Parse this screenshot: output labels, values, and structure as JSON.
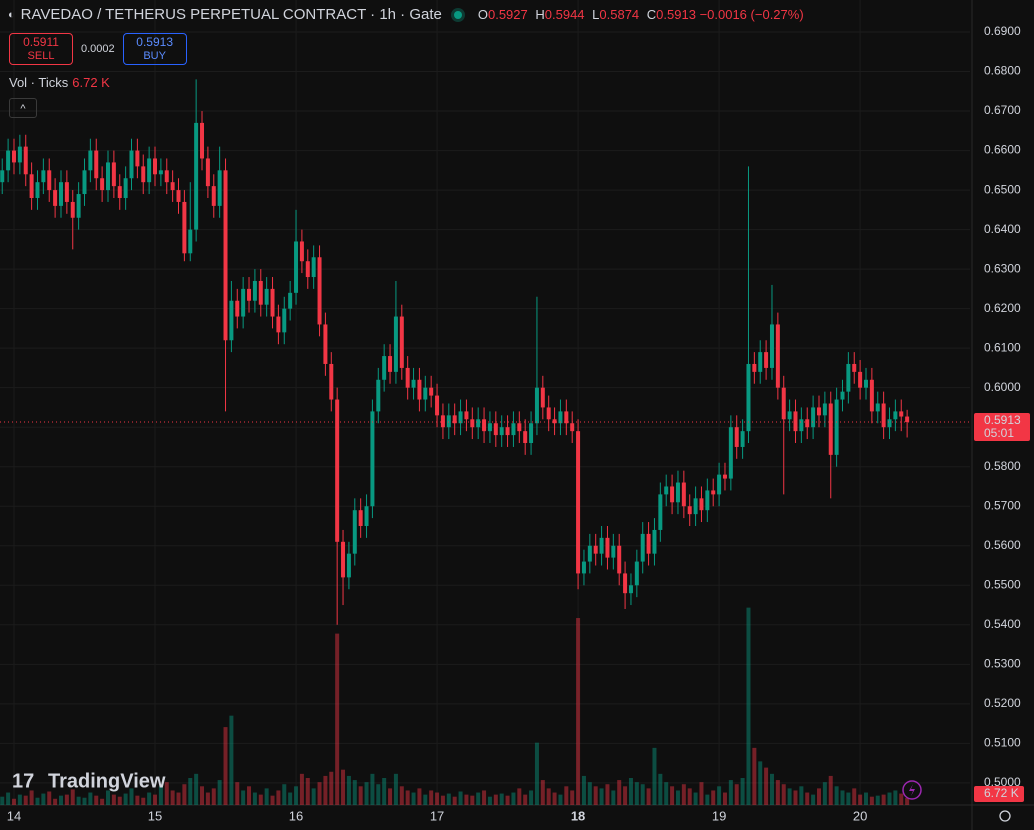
{
  "chart_data": {
    "type": "candlestick",
    "title": "RAVEDAO / TETHERUS PERPETUAL CONTRACT · 1h · Gate",
    "ohlc_labels": [
      "O",
      "H",
      "L",
      "C"
    ],
    "change": {
      "value": -0.0016,
      "label": "−0.0016"
    },
    "change_pct": {
      "value": -0.27,
      "label": "(−0.27%)"
    },
    "sell": {
      "price": 0.5911,
      "label": "SELL"
    },
    "spread": 0.0002,
    "buy": {
      "price": 0.5913,
      "label": "BUY"
    },
    "countdown": "05:01",
    "branding": "TradingView",
    "up_color": "#089981",
    "down_color": "#f23645",
    "open": [
      0.652,
      0.655,
      0.66,
      0.657,
      0.661,
      0.654,
      0.648,
      0.652,
      0.655,
      0.65,
      0.646,
      0.652,
      0.647,
      0.643,
      0.649,
      0.655,
      0.66,
      0.653,
      0.65,
      0.657,
      0.651,
      0.648,
      0.653,
      0.66,
      0.656,
      0.652,
      0.658,
      0.654,
      0.655,
      0.652,
      0.65,
      0.647,
      0.634,
      0.64,
      0.667,
      0.658,
      0.651,
      0.646,
      0.655,
      0.612,
      0.622,
      0.618,
      0.625,
      0.622,
      0.627,
      0.621,
      0.625,
      0.618,
      0.614,
      0.62,
      0.624,
      0.637,
      0.632,
      0.628,
      0.633,
      0.616,
      0.606,
      0.597,
      0.561,
      0.552,
      0.558,
      0.569,
      0.565,
      0.57,
      0.594,
      0.602,
      0.608,
      0.604,
      0.618,
      0.605,
      0.6,
      0.602,
      0.597,
      0.6,
      0.598,
      0.593,
      0.59,
      0.593,
      0.591,
      0.594,
      0.592,
      0.59,
      0.592,
      0.589,
      0.591,
      0.588,
      0.59,
      0.588,
      0.591,
      0.589,
      0.586,
      0.591,
      0.6,
      0.595,
      0.592,
      0.591,
      0.594,
      0.591,
      0.589,
      0.553,
      0.556,
      0.56,
      0.558,
      0.562,
      0.557,
      0.56,
      0.553,
      0.548,
      0.55,
      0.556,
      0.563,
      0.558,
      0.564,
      0.573,
      0.575,
      0.571,
      0.576,
      0.57,
      0.568,
      0.572,
      0.569,
      0.574,
      0.573,
      0.578,
      0.577,
      0.59,
      0.585,
      0.589,
      0.606,
      0.604,
      0.609,
      0.605,
      0.616,
      0.6,
      0.592,
      0.594,
      0.589,
      0.592,
      0.59,
      0.595,
      0.593,
      0.596,
      0.583,
      0.597,
      0.599,
      0.606,
      0.604,
      0.6,
      0.602,
      0.594,
      0.596,
      0.59,
      0.592,
      0.594,
      0.5927
    ],
    "high": [
      0.658,
      0.663,
      0.663,
      0.664,
      0.664,
      0.657,
      0.655,
      0.658,
      0.658,
      0.653,
      0.655,
      0.655,
      0.65,
      0.652,
      0.658,
      0.663,
      0.663,
      0.656,
      0.66,
      0.66,
      0.654,
      0.656,
      0.663,
      0.663,
      0.659,
      0.661,
      0.661,
      0.658,
      0.658,
      0.655,
      0.653,
      0.65,
      0.652,
      0.678,
      0.67,
      0.661,
      0.654,
      0.661,
      0.658,
      0.627,
      0.625,
      0.628,
      0.628,
      0.63,
      0.63,
      0.628,
      0.628,
      0.621,
      0.623,
      0.627,
      0.645,
      0.64,
      0.635,
      0.636,
      0.636,
      0.619,
      0.609,
      0.6,
      0.564,
      0.561,
      0.572,
      0.572,
      0.573,
      0.597,
      0.605,
      0.611,
      0.611,
      0.627,
      0.621,
      0.608,
      0.605,
      0.605,
      0.603,
      0.603,
      0.601,
      0.596,
      0.596,
      0.596,
      0.597,
      0.597,
      0.595,
      0.595,
      0.595,
      0.594,
      0.594,
      0.593,
      0.593,
      0.594,
      0.594,
      0.592,
      0.594,
      0.623,
      0.603,
      0.598,
      0.595,
      0.597,
      0.597,
      0.594,
      0.592,
      0.559,
      0.563,
      0.563,
      0.565,
      0.565,
      0.563,
      0.563,
      0.556,
      0.553,
      0.559,
      0.566,
      0.566,
      0.567,
      0.576,
      0.578,
      0.578,
      0.579,
      0.579,
      0.573,
      0.575,
      0.575,
      0.577,
      0.577,
      0.581,
      0.581,
      0.593,
      0.593,
      0.592,
      0.656,
      0.609,
      0.612,
      0.612,
      0.626,
      0.619,
      0.603,
      0.597,
      0.597,
      0.595,
      0.595,
      0.598,
      0.598,
      0.599,
      0.599,
      0.6,
      0.602,
      0.609,
      0.609,
      0.607,
      0.605,
      0.605,
      0.599,
      0.599,
      0.595,
      0.597,
      0.597,
      0.5944
    ],
    "low": [
      0.649,
      0.652,
      0.654,
      0.654,
      0.651,
      0.645,
      0.645,
      0.649,
      0.647,
      0.643,
      0.643,
      0.644,
      0.635,
      0.64,
      0.646,
      0.652,
      0.65,
      0.647,
      0.647,
      0.648,
      0.645,
      0.645,
      0.65,
      0.653,
      0.649,
      0.649,
      0.651,
      0.651,
      0.649,
      0.647,
      0.644,
      0.632,
      0.632,
      0.637,
      0.655,
      0.648,
      0.643,
      0.643,
      0.594,
      0.609,
      0.615,
      0.615,
      0.619,
      0.619,
      0.618,
      0.618,
      0.615,
      0.611,
      0.611,
      0.617,
      0.621,
      0.629,
      0.625,
      0.625,
      0.613,
      0.603,
      0.594,
      0.54,
      0.545,
      0.549,
      0.555,
      0.562,
      0.562,
      0.567,
      0.591,
      0.599,
      0.601,
      0.601,
      0.602,
      0.597,
      0.597,
      0.594,
      0.594,
      0.595,
      0.59,
      0.587,
      0.587,
      0.588,
      0.588,
      0.589,
      0.587,
      0.587,
      0.586,
      0.586,
      0.585,
      0.585,
      0.585,
      0.585,
      0.586,
      0.583,
      0.583,
      0.588,
      0.592,
      0.589,
      0.588,
      0.588,
      0.588,
      0.586,
      0.549,
      0.55,
      0.553,
      0.555,
      0.555,
      0.554,
      0.554,
      0.55,
      0.544,
      0.545,
      0.547,
      0.553,
      0.555,
      0.555,
      0.561,
      0.57,
      0.568,
      0.568,
      0.567,
      0.565,
      0.565,
      0.566,
      0.566,
      0.57,
      0.57,
      0.574,
      0.574,
      0.582,
      0.582,
      0.586,
      0.601,
      0.601,
      0.602,
      0.602,
      0.597,
      0.573,
      0.589,
      0.586,
      0.586,
      0.587,
      0.587,
      0.59,
      0.59,
      0.572,
      0.58,
      0.594,
      0.596,
      0.601,
      0.597,
      0.597,
      0.591,
      0.591,
      0.587,
      0.587,
      0.589,
      0.589,
      0.5874
    ],
    "close": [
      0.655,
      0.66,
      0.657,
      0.661,
      0.654,
      0.648,
      0.652,
      0.655,
      0.65,
      0.646,
      0.652,
      0.647,
      0.643,
      0.649,
      0.655,
      0.66,
      0.653,
      0.65,
      0.657,
      0.651,
      0.648,
      0.653,
      0.66,
      0.656,
      0.652,
      0.658,
      0.654,
      0.655,
      0.652,
      0.65,
      0.647,
      0.634,
      0.64,
      0.667,
      0.658,
      0.651,
      0.646,
      0.655,
      0.612,
      0.622,
      0.618,
      0.625,
      0.622,
      0.627,
      0.621,
      0.625,
      0.618,
      0.614,
      0.62,
      0.624,
      0.637,
      0.632,
      0.628,
      0.633,
      0.616,
      0.606,
      0.597,
      0.561,
      0.552,
      0.558,
      0.569,
      0.565,
      0.57,
      0.594,
      0.602,
      0.608,
      0.604,
      0.618,
      0.605,
      0.6,
      0.602,
      0.597,
      0.6,
      0.598,
      0.593,
      0.59,
      0.593,
      0.591,
      0.594,
      0.592,
      0.59,
      0.592,
      0.589,
      0.591,
      0.588,
      0.59,
      0.588,
      0.591,
      0.589,
      0.586,
      0.591,
      0.6,
      0.595,
      0.592,
      0.591,
      0.594,
      0.591,
      0.589,
      0.553,
      0.556,
      0.56,
      0.558,
      0.562,
      0.557,
      0.56,
      0.553,
      0.548,
      0.55,
      0.556,
      0.563,
      0.558,
      0.564,
      0.573,
      0.575,
      0.571,
      0.576,
      0.57,
      0.568,
      0.572,
      0.569,
      0.574,
      0.573,
      0.578,
      0.577,
      0.59,
      0.585,
      0.589,
      0.606,
      0.604,
      0.609,
      0.605,
      0.616,
      0.6,
      0.592,
      0.594,
      0.589,
      0.592,
      0.59,
      0.595,
      0.593,
      0.596,
      0.583,
      0.597,
      0.599,
      0.606,
      0.604,
      0.6,
      0.602,
      0.594,
      0.596,
      0.59,
      0.592,
      0.594,
      0.5927,
      0.5913
    ],
    "volume": {
      "name": "Vol · Ticks",
      "value_label": "6.72 K",
      "ylim": [
        0,
        775
      ],
      "values": [
        8,
        12,
        6,
        10,
        9,
        14,
        7,
        11,
        13,
        6,
        9,
        10,
        15,
        8,
        7,
        12,
        9,
        6,
        14,
        10,
        8,
        11,
        16,
        9,
        7,
        12,
        10,
        18,
        22,
        14,
        12,
        20,
        26,
        30,
        18,
        12,
        16,
        24,
        75,
        86,
        22,
        14,
        18,
        12,
        10,
        16,
        9,
        14,
        20,
        12,
        18,
        30,
        26,
        16,
        22,
        28,
        32,
        165,
        34,
        28,
        24,
        18,
        22,
        30,
        20,
        26,
        16,
        30,
        18,
        14,
        12,
        16,
        10,
        14,
        12,
        9,
        11,
        8,
        13,
        10,
        9,
        12,
        14,
        8,
        10,
        11,
        9,
        12,
        16,
        10,
        14,
        60,
        24,
        16,
        12,
        10,
        18,
        14,
        180,
        28,
        22,
        18,
        16,
        20,
        14,
        24,
        18,
        26,
        22,
        20,
        16,
        55,
        30,
        22,
        18,
        14,
        20,
        16,
        12,
        22,
        10,
        14,
        18,
        12,
        24,
        20,
        26,
        190,
        55,
        42,
        36,
        30,
        24,
        20,
        16,
        14,
        18,
        12,
        10,
        16,
        22,
        28,
        18,
        14,
        12,
        16,
        10,
        12,
        8,
        9,
        10,
        12,
        14,
        11,
        6.72
      ]
    },
    "xlim": [
      -0.38,
      164.7
    ],
    "xticks": [
      {
        "value": 2,
        "label": "14"
      },
      {
        "value": 26,
        "label": "15"
      },
      {
        "value": 50,
        "label": "16"
      },
      {
        "value": 74,
        "label": "17"
      },
      {
        "value": 98,
        "label": "18"
      },
      {
        "value": 122,
        "label": "19"
      },
      {
        "value": 146,
        "label": "20"
      }
    ],
    "ylim": [
      0.4944,
      0.6981
    ],
    "yticks": [
      {
        "value": 0.5,
        "label": "0.5000"
      },
      {
        "value": 0.51,
        "label": "0.5100"
      },
      {
        "value": 0.52,
        "label": "0.5200"
      },
      {
        "value": 0.53,
        "label": "0.5300"
      },
      {
        "value": 0.54,
        "label": "0.5400"
      },
      {
        "value": 0.55,
        "label": "0.5500"
      },
      {
        "value": 0.56,
        "label": "0.5600"
      },
      {
        "value": 0.57,
        "label": "0.5700"
      },
      {
        "value": 0.58,
        "label": "0.5800"
      },
      {
        "value": 0.59,
        "label": "0.5900"
      },
      {
        "value": 0.6,
        "label": "0.6000"
      },
      {
        "value": 0.61,
        "label": "0.6100"
      },
      {
        "value": 0.62,
        "label": "0.6200"
      },
      {
        "value": 0.63,
        "label": "0.6300"
      },
      {
        "value": 0.64,
        "label": "0.6400"
      },
      {
        "value": 0.65,
        "label": "0.6500"
      },
      {
        "value": 0.66,
        "label": "0.6600"
      },
      {
        "value": 0.67,
        "label": "0.6700"
      },
      {
        "value": 0.68,
        "label": "0.6800"
      },
      {
        "value": 0.69,
        "label": "0.6900"
      }
    ],
    "grid": true
  }
}
